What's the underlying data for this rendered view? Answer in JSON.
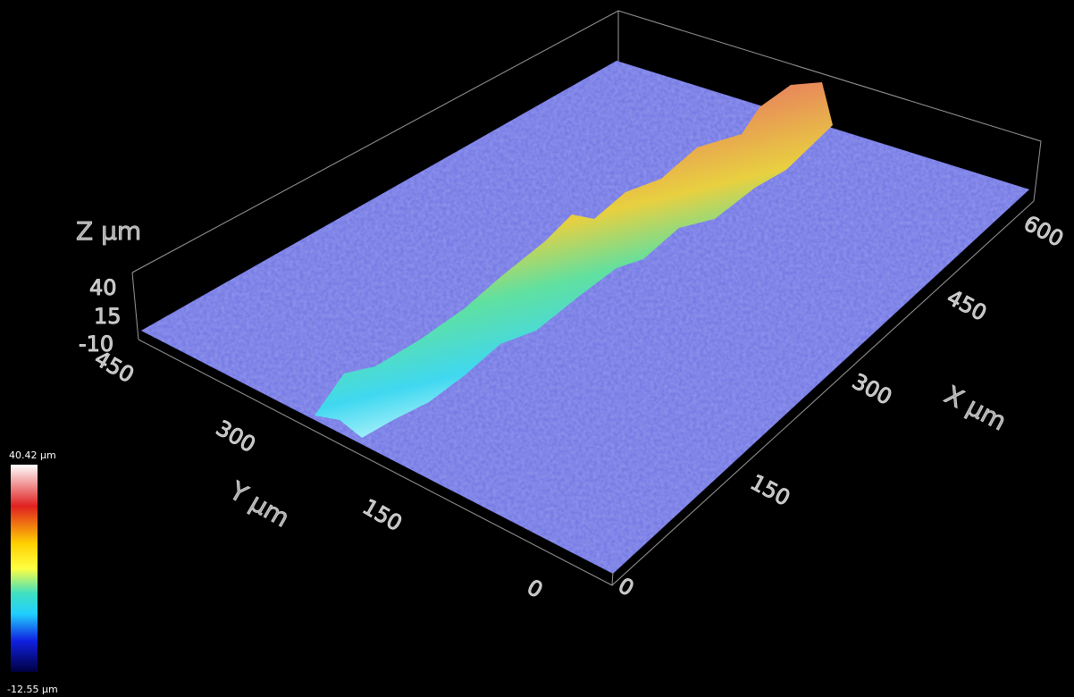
{
  "z_axis": {
    "label": "Z µm",
    "ticks": [
      40,
      15,
      -10
    ]
  },
  "y_axis": {
    "label": "Y µm",
    "ticks": [
      0,
      150,
      300,
      450
    ]
  },
  "x_axis": {
    "label": "X µm",
    "ticks": [
      0,
      150,
      300,
      450,
      600
    ]
  },
  "colorbar": {
    "max_label": "40.42 µm",
    "min_label": "-12.55 µm"
  }
}
